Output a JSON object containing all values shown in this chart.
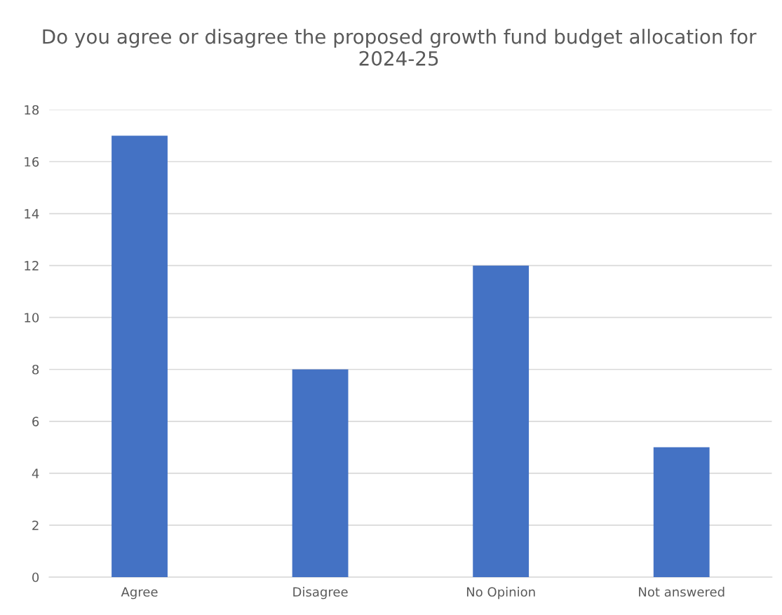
{
  "chart_data": {
    "type": "bar",
    "title": "Do you agree or disagree the proposed growth fund budget allocation for 2024-25",
    "categories": [
      "Agree",
      "Disagree",
      "No Opinion",
      "Not answered"
    ],
    "values": [
      17,
      8,
      12,
      5
    ],
    "color": "#4472c4",
    "ylim": [
      0,
      18
    ],
    "yticks": [
      0,
      2,
      4,
      6,
      8,
      10,
      12,
      14,
      16,
      18
    ],
    "grid": "y"
  }
}
